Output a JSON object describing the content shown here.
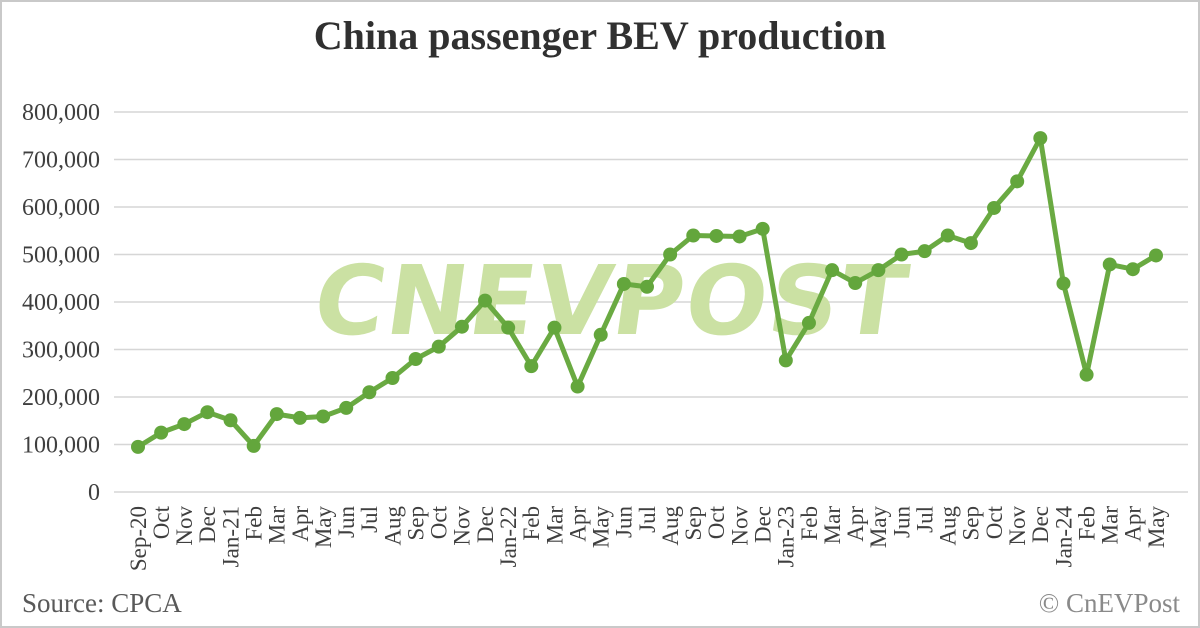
{
  "page": {
    "title": "China passenger BEV production"
  },
  "watermark": "CNEVPOST",
  "footer": {
    "source": "Source: CPCA",
    "credit": "© CnEVPost"
  },
  "colors": {
    "line": "#6aaa42",
    "marker": "#63a63c",
    "watermark": "#cbe1a3",
    "grid": "#d6d6d6",
    "title_text": "#303030",
    "axis_text": "#3f3f3f",
    "source_text": "#595959",
    "credit_text": "#8a8a8a"
  },
  "chart_data": {
    "type": "line",
    "title": "China passenger BEV production",
    "xlabel": "",
    "ylabel": "",
    "legend_position": "none",
    "grid": "horizontal",
    "markers": true,
    "ylim": [
      0,
      800000
    ],
    "y_ticks": [
      0,
      100000,
      200000,
      300000,
      400000,
      500000,
      600000,
      700000,
      800000
    ],
    "y_tick_labels": [
      "0",
      "100,000",
      "200,000",
      "300,000",
      "400,000",
      "500,000",
      "600,000",
      "700,000",
      "800,000"
    ],
    "categories": [
      "Sep-20",
      "Oct",
      "Nov",
      "Dec",
      "Jan-21",
      "Feb",
      "Mar",
      "Apr",
      "May",
      "Jun",
      "Jul",
      "Aug",
      "Sep",
      "Oct",
      "Nov",
      "Dec",
      "Jan-22",
      "Feb",
      "Mar",
      "Apr",
      "May",
      "Jun",
      "Jul",
      "Aug",
      "Sep",
      "Oct",
      "Nov",
      "Dec",
      "Jan-23",
      "Feb",
      "Mar",
      "Apr",
      "May",
      "Jun",
      "Jul",
      "Aug",
      "Sep",
      "Oct",
      "Nov",
      "Dec",
      "Jan-24",
      "Feb",
      "Mar",
      "Apr",
      "May"
    ],
    "series": [
      {
        "name": "China passenger BEV production (units)",
        "values": [
          95000,
          125000,
          143000,
          168000,
          151000,
          97000,
          164000,
          156000,
          159000,
          177000,
          210000,
          240000,
          280000,
          306000,
          348000,
          403000,
          346000,
          265000,
          346000,
          222000,
          331000,
          438000,
          432000,
          500000,
          540000,
          539000,
          538000,
          554000,
          277000,
          356000,
          467000,
          440000,
          467000,
          500000,
          507000,
          540000,
          524000,
          598000,
          654000,
          745000,
          439000,
          247000,
          479000,
          469000,
          498000
        ]
      }
    ],
    "source": "CPCA"
  }
}
